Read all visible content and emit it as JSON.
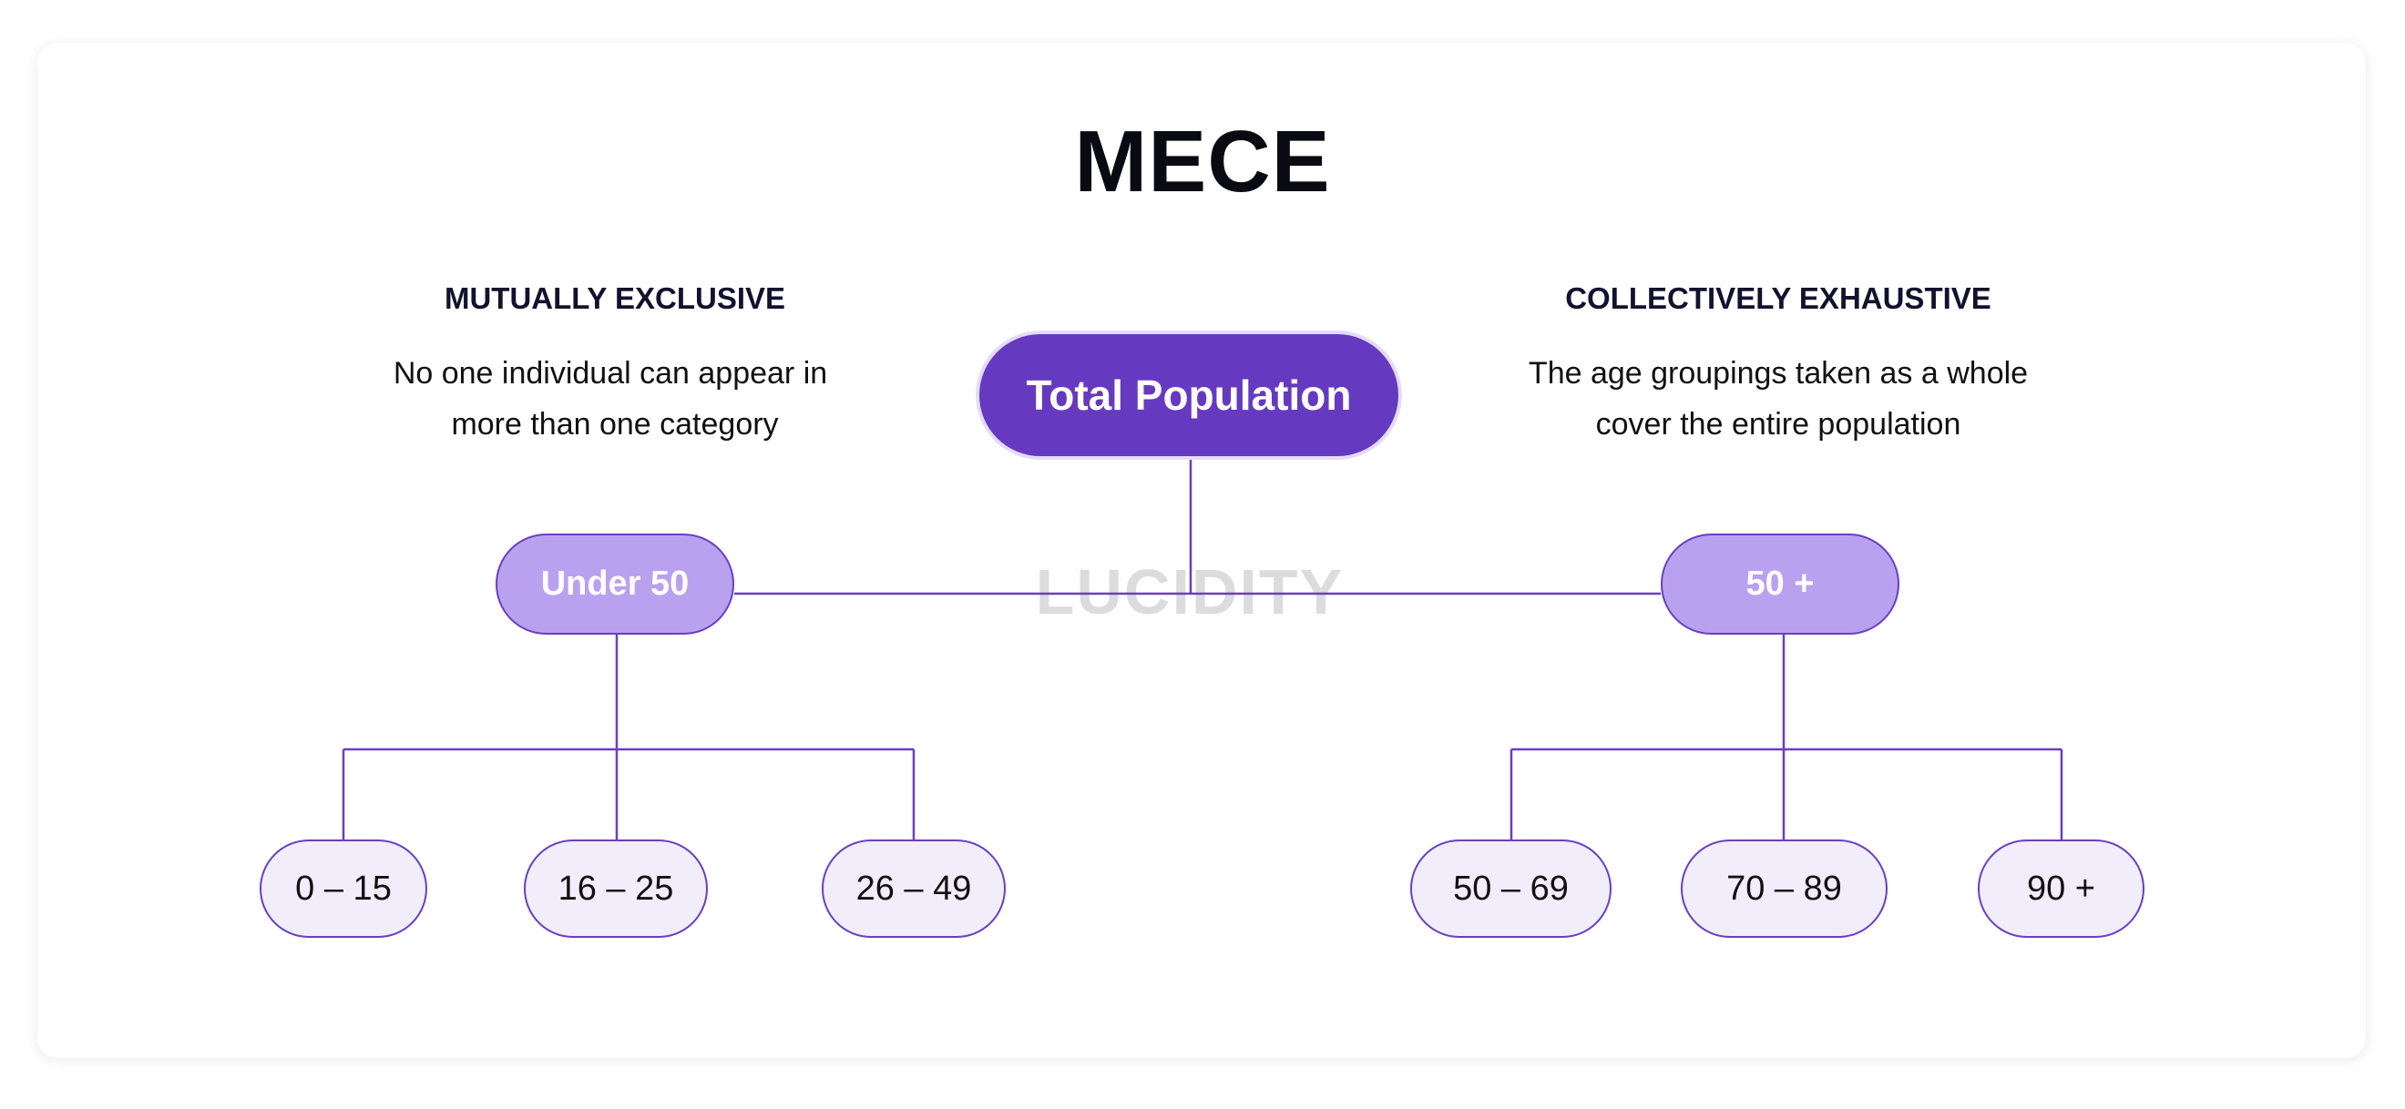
{
  "title": "MECE",
  "left_panel": {
    "heading": "MUTUALLY EXCLUSIVE",
    "line1": "No one individual can appear in",
    "line2": "more than one category"
  },
  "right_panel": {
    "heading": "COLLECTIVELY EXHAUSTIVE",
    "line1": "The age groupings taken as a whole",
    "line2": "cover the entire population"
  },
  "watermark": "LUCIDITY",
  "tree": {
    "root": "Total Population",
    "groups": [
      {
        "label": "Under 50",
        "children": [
          "0 – 15",
          "16 – 25",
          "26 – 49"
        ]
      },
      {
        "label": "50 +",
        "children": [
          "50 – 69",
          "70 – 89",
          "90 +"
        ]
      }
    ]
  },
  "colors": {
    "root_fill": "#653ac0",
    "group_fill": "#b9a1f0",
    "leaf_fill": "#f1edfb",
    "connector": "#6a3ec2"
  }
}
